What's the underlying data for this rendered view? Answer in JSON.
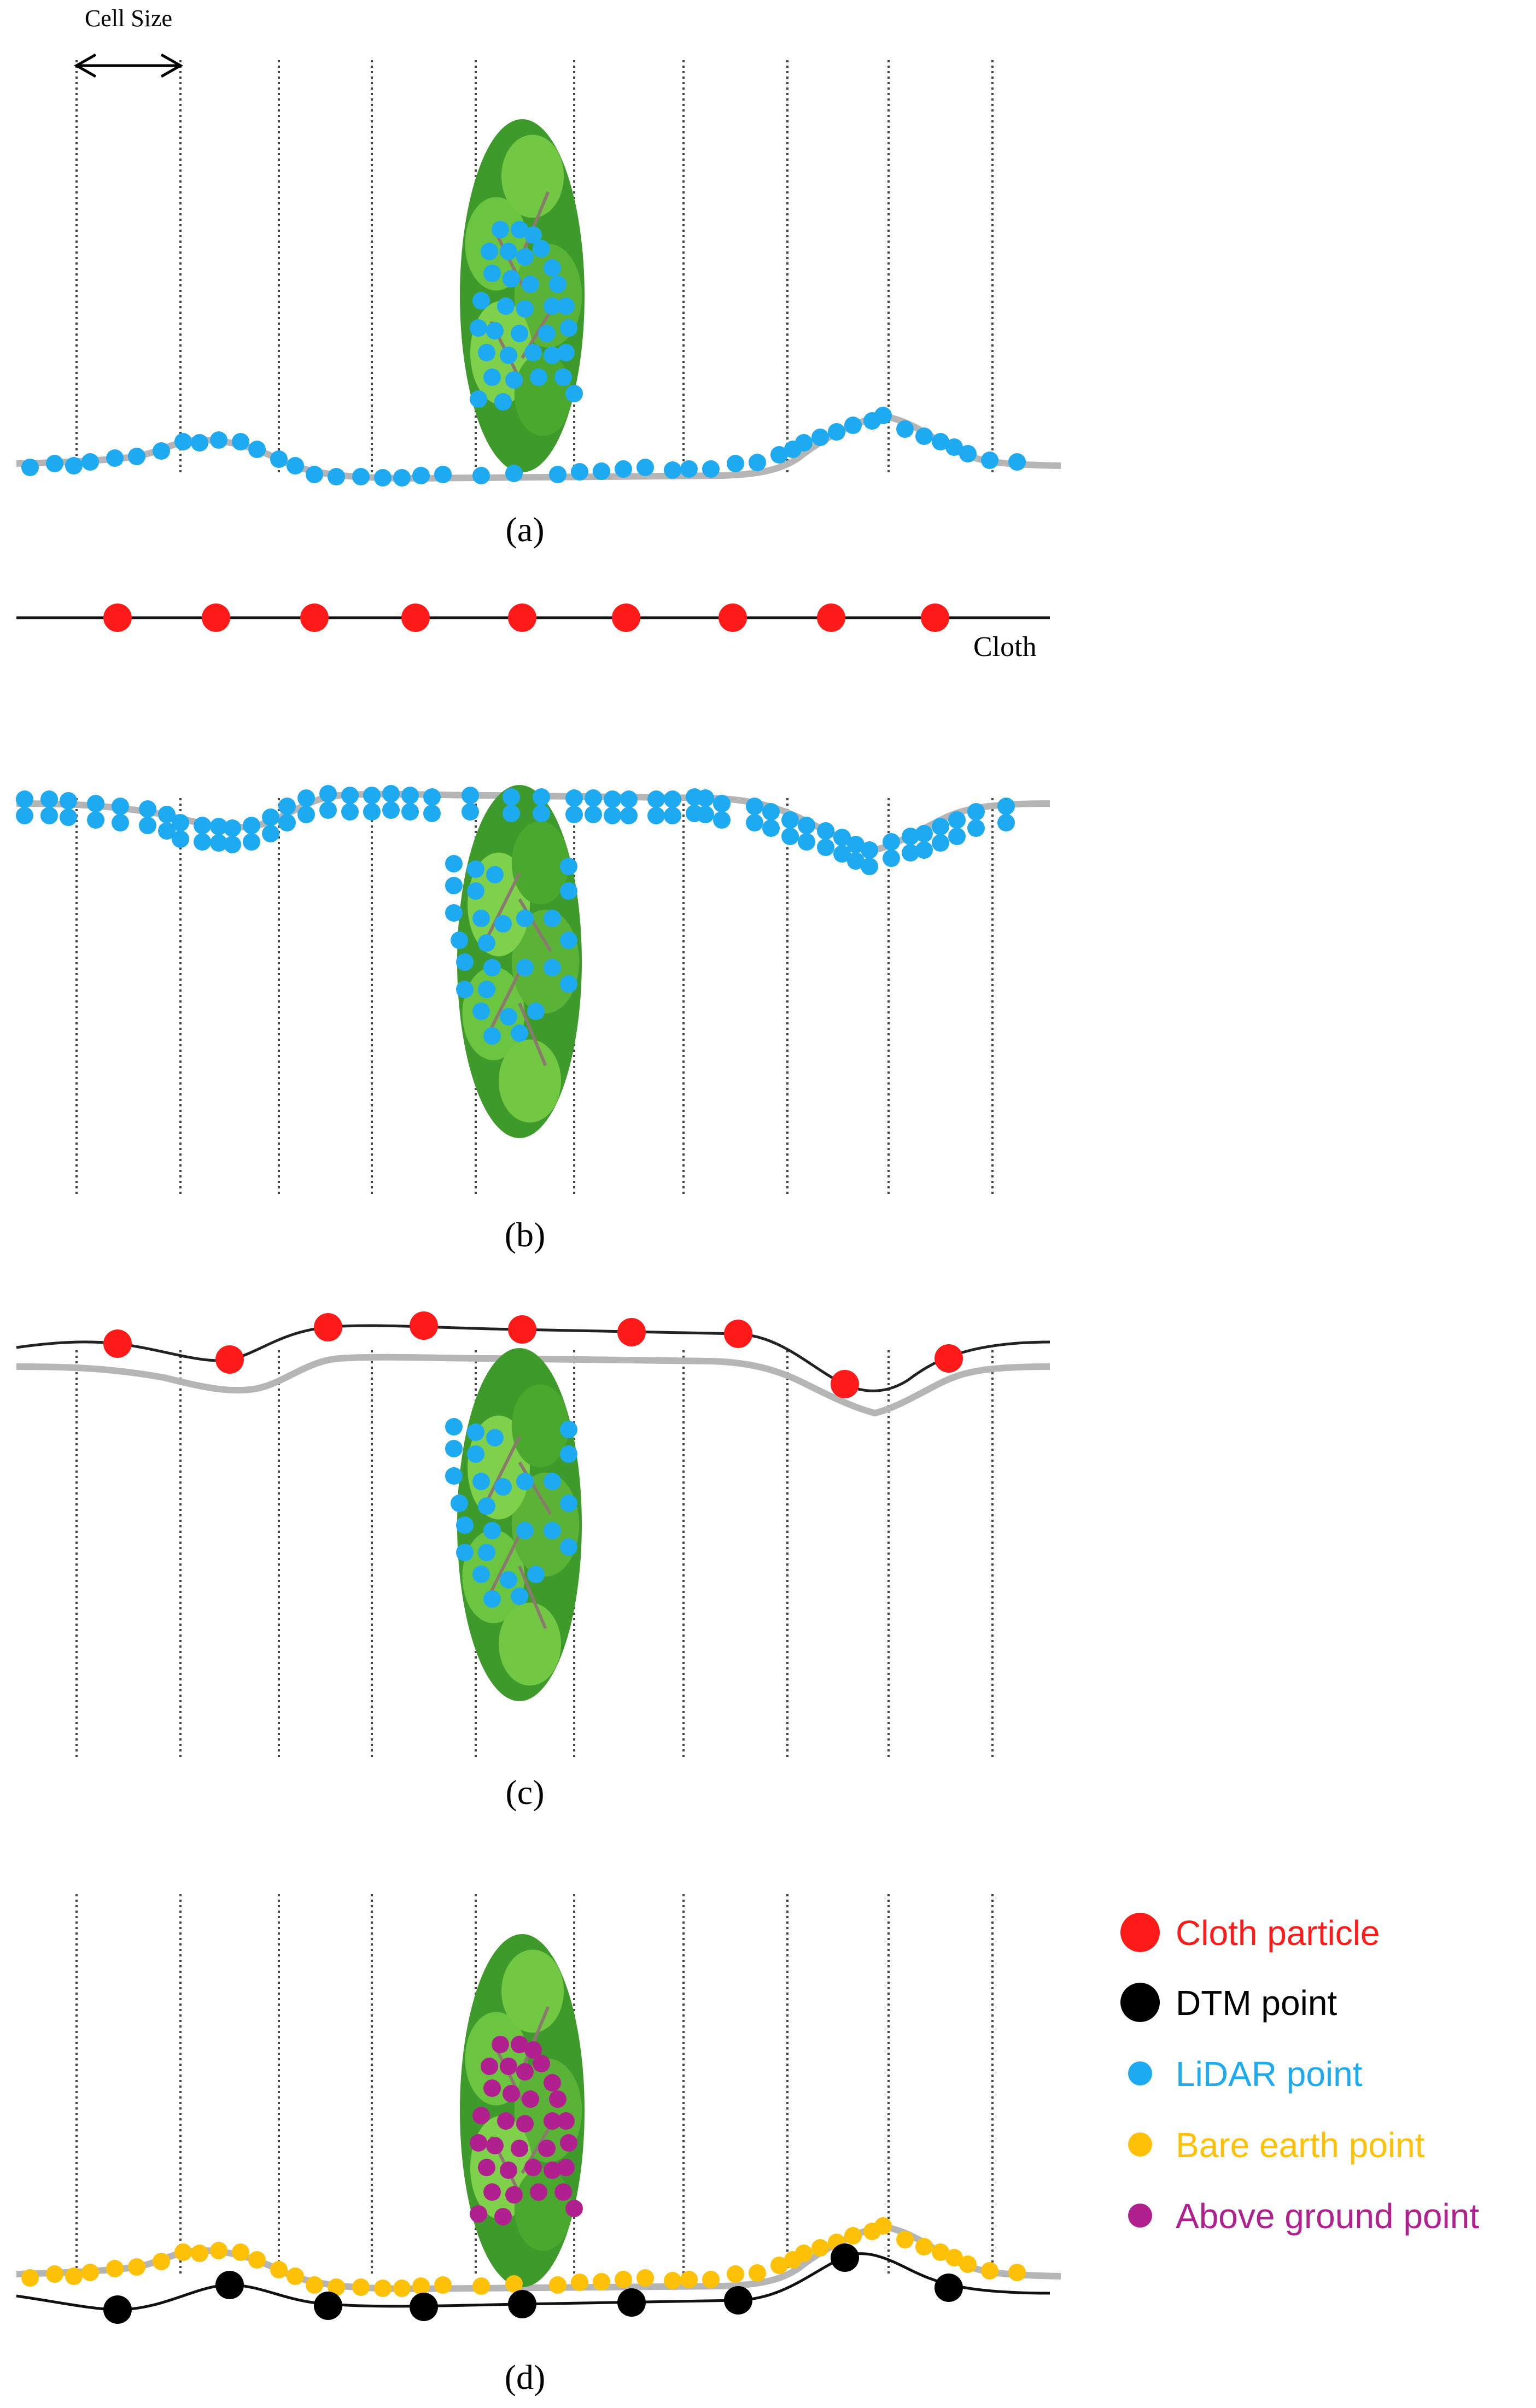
{
  "top": {
    "cell_size_label": "Cell Size",
    "cloth_label": "Cloth"
  },
  "captions": {
    "a": "(a)",
    "b": "(b)",
    "c": "(c)",
    "d": "(d)"
  },
  "legend": {
    "items": [
      {
        "key": "cloth_particle",
        "label": "Cloth particle",
        "color": "#ff1a1a",
        "icon": "large-red-dot"
      },
      {
        "key": "dtm_point",
        "label": "DTM point",
        "color": "#000000",
        "icon": "large-black-dot"
      },
      {
        "key": "lidar_point",
        "label": "LiDAR point",
        "color": "#1eaaf0",
        "icon": "small-blue-dot"
      },
      {
        "key": "bare_earth_point",
        "label": "Bare earth point",
        "color": "#ffc107",
        "icon": "small-yellow-dot"
      },
      {
        "key": "above_ground_point",
        "label": "Above ground point",
        "color": "#b0218f",
        "icon": "small-purple-dot"
      }
    ]
  },
  "colors": {
    "terrain": "#b5b5b5",
    "cloth_line": "#222222",
    "grid": "#444444",
    "foliage_dark": "#3a8a28",
    "foliage_light": "#7fd04a",
    "trunk": "#8a7a6e"
  }
}
